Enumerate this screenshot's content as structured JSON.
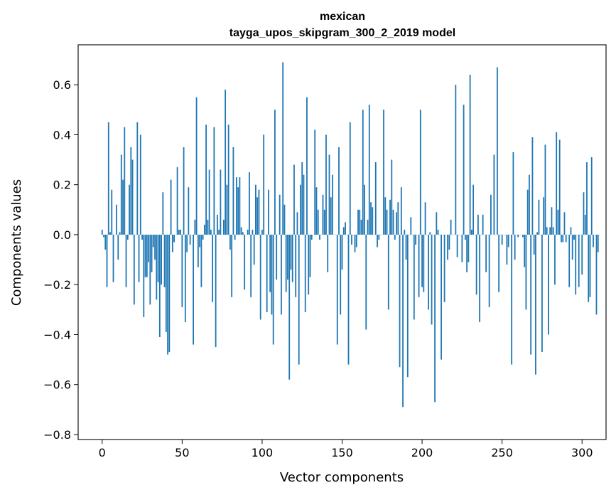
{
  "chart_data": {
    "type": "bar",
    "title": "mexican",
    "subtitle": "tayga_upos_skipgram_300_2_2019 model",
    "xlabel": "Vector components",
    "ylabel": "Components values",
    "xlim": [
      -15,
      315
    ],
    "ylim": [
      -0.82,
      0.76
    ],
    "xticks": [
      0,
      50,
      100,
      150,
      200,
      250,
      300
    ],
    "yticks": [
      -0.8,
      -0.6,
      -0.4,
      -0.2,
      0.0,
      0.2,
      0.4,
      0.6
    ],
    "ytick_labels": [
      "−0.8",
      "−0.6",
      "−0.4",
      "−0.2",
      "0.0",
      "0.2",
      "0.4",
      "0.6"
    ],
    "grid": false,
    "bar_color": "#1f77b4",
    "values": [
      0.02,
      -0.01,
      -0.06,
      -0.21,
      0.45,
      0.01,
      0.18,
      -0.19,
      0.0,
      0.12,
      -0.1,
      0.01,
      0.32,
      0.22,
      0.43,
      -0.21,
      -0.02,
      0.2,
      0.35,
      0.3,
      -0.28,
      0.0,
      0.45,
      -0.19,
      0.4,
      -0.02,
      -0.33,
      -0.17,
      -0.17,
      -0.11,
      -0.28,
      -0.15,
      -0.05,
      -0.1,
      -0.26,
      -0.19,
      -0.41,
      -0.2,
      0.17,
      -0.21,
      -0.39,
      -0.48,
      -0.47,
      0.22,
      -0.07,
      -0.03,
      0.0,
      0.27,
      0.02,
      0.02,
      -0.29,
      0.35,
      -0.35,
      -0.07,
      0.19,
      -0.04,
      0.0,
      -0.44,
      0.06,
      0.55,
      -0.13,
      -0.05,
      -0.21,
      -0.02,
      0.04,
      0.44,
      0.06,
      0.26,
      0.02,
      -0.27,
      0.43,
      -0.45,
      0.08,
      0.02,
      0.26,
      0.0,
      0.06,
      0.58,
      0.2,
      0.44,
      -0.06,
      -0.25,
      0.35,
      -0.02,
      0.23,
      0.19,
      0.23,
      0.03,
      0.01,
      -0.22,
      0.0,
      0.02,
      0.25,
      -0.25,
      0.02,
      -0.12,
      0.2,
      0.15,
      0.18,
      -0.34,
      0.02,
      0.4,
      0.0,
      -0.31,
      0.18,
      -0.23,
      -0.32,
      -0.44,
      0.5,
      -0.18,
      0.0,
      0.16,
      -0.32,
      0.69,
      0.12,
      -0.23,
      -0.18,
      -0.58,
      -0.14,
      -0.19,
      0.28,
      -0.25,
      0.09,
      -0.52,
      0.2,
      0.29,
      0.24,
      -0.31,
      0.55,
      -0.24,
      -0.17,
      -0.02,
      0.0,
      0.42,
      0.19,
      0.1,
      -0.02,
      0.0,
      0.16,
      0.1,
      0.4,
      -0.15,
      0.32,
      0.15,
      0.24,
      0.0,
      0.0,
      -0.44,
      0.35,
      -0.32,
      -0.14,
      0.03,
      0.05,
      0.0,
      -0.52,
      0.45,
      -0.04,
      0.0,
      -0.07,
      -0.05,
      0.1,
      0.1,
      0.06,
      0.5,
      0.2,
      -0.38,
      0.06,
      0.52,
      0.13,
      0.11,
      0.0,
      0.29,
      -0.05,
      -0.02,
      0.0,
      0.0,
      0.5,
      0.15,
      0.1,
      -0.3,
      0.14,
      0.3,
      0.1,
      -0.02,
      0.09,
      0.13,
      -0.53,
      0.19,
      -0.69,
      0.02,
      -0.1,
      -0.57,
      0.0,
      0.07,
      0.0,
      -0.34,
      -0.04,
      0.0,
      -0.25,
      0.5,
      -0.21,
      -0.23,
      0.13,
      0.0,
      -0.3,
      0.01,
      -0.36,
      0.0,
      -0.67,
      0.09,
      0.02,
      0.0,
      -0.5,
      0.0,
      -0.27,
      0.0,
      -0.1,
      -0.06,
      0.06,
      0.0,
      0.0,
      0.6,
      -0.09,
      0.0,
      0.0,
      -0.11,
      0.52,
      -0.02,
      -0.15,
      -0.11,
      0.64,
      0.02,
      0.2,
      0.0,
      -0.24,
      0.08,
      -0.35,
      0.0,
      0.08,
      0.0,
      -0.15,
      0.0,
      -0.29,
      0.16,
      0.0,
      0.32,
      0.0,
      0.67,
      -0.23,
      0.0,
      -0.04,
      0.0,
      0.0,
      -0.12,
      -0.05,
      0.0,
      -0.52,
      0.33,
      -0.1,
      0.0,
      -0.01,
      0.0,
      0.0,
      -0.01,
      -0.13,
      -0.3,
      0.18,
      0.24,
      -0.48,
      0.39,
      -0.08,
      -0.56,
      0.01,
      0.14,
      0.0,
      -0.47,
      0.15,
      0.36,
      0.03,
      -0.4,
      0.03,
      0.11,
      0.03,
      -0.2,
      0.41,
      0.1,
      0.38,
      -0.03,
      -0.03,
      0.09,
      -0.03,
      0.0,
      -0.21,
      0.03,
      -0.1,
      -0.02,
      -0.24,
      0.0,
      -0.21,
      0.0,
      -0.16,
      0.17,
      0.08,
      0.29,
      -0.27,
      -0.25,
      0.31,
      -0.05,
      0.0,
      -0.32,
      -0.07,
      0.0
    ]
  }
}
